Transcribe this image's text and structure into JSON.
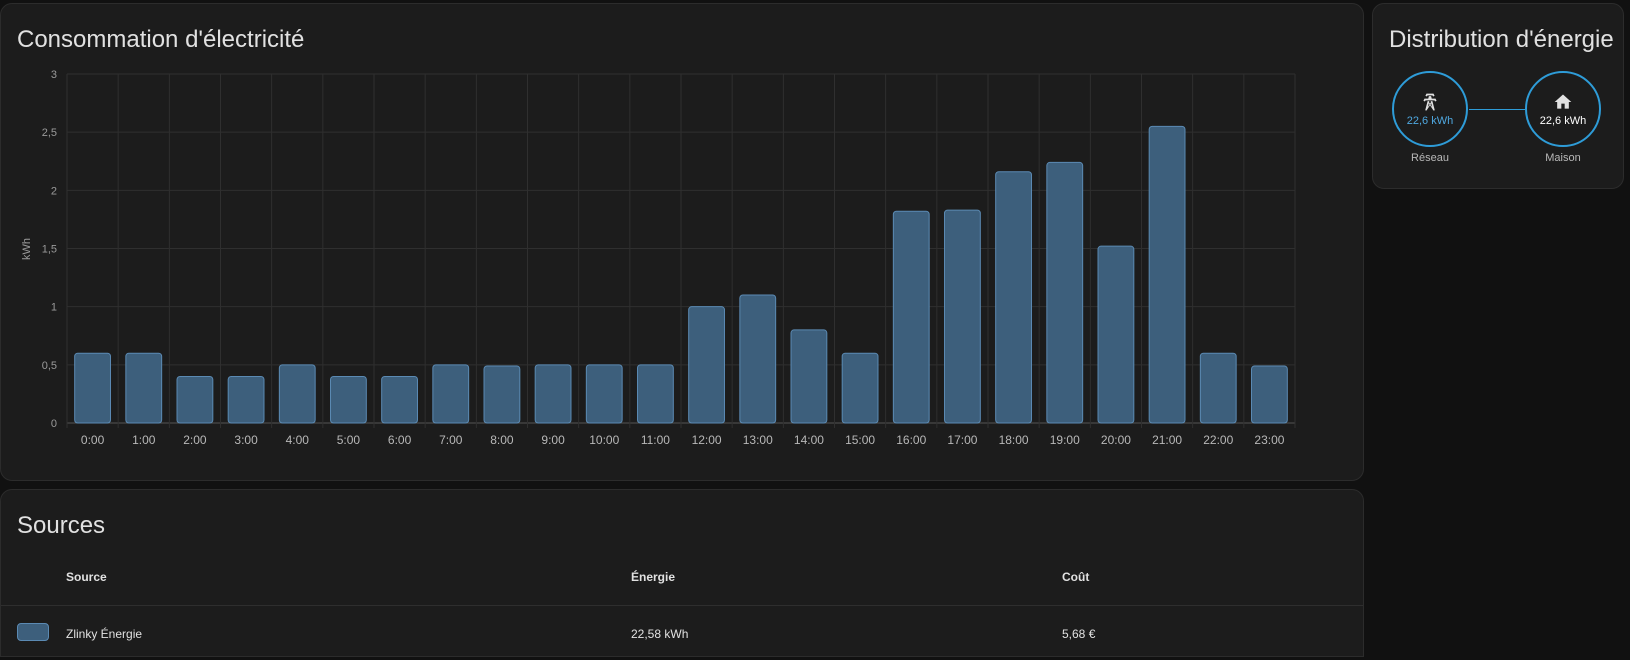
{
  "consumption": {
    "title": "Consommation d'électricité",
    "unit_label": "kWh"
  },
  "chart_data": {
    "type": "bar",
    "title": "Consommation d'électricité",
    "xlabel": "",
    "ylabel": "kWh",
    "ylim": [
      0,
      3
    ],
    "y_ticks": [
      "0",
      "0,5",
      "1",
      "1,5",
      "2",
      "2,5",
      "3"
    ],
    "categories": [
      "0:00",
      "1:00",
      "2:00",
      "3:00",
      "4:00",
      "5:00",
      "6:00",
      "7:00",
      "8:00",
      "9:00",
      "10:00",
      "11:00",
      "12:00",
      "13:00",
      "14:00",
      "15:00",
      "16:00",
      "17:00",
      "18:00",
      "19:00",
      "20:00",
      "21:00",
      "22:00",
      "23:00"
    ],
    "values": [
      0.6,
      0.6,
      0.4,
      0.4,
      0.5,
      0.4,
      0.4,
      0.5,
      0.49,
      0.5,
      0.5,
      0.5,
      1.0,
      1.1,
      0.8,
      0.6,
      1.82,
      1.83,
      2.16,
      2.24,
      1.52,
      2.55,
      0.6,
      0.49
    ],
    "grid": true,
    "colors": {
      "fill": "#3d5f7c",
      "stroke": "#5b8ab3"
    }
  },
  "sources": {
    "title": "Sources",
    "headers": {
      "source": "Source",
      "energy": "Énergie",
      "cost": "Coût"
    },
    "rows": [
      {
        "name": "Zlinky Énergie",
        "energy": "22,58 kWh",
        "cost": "5,68 €",
        "color": "#3d5f7c"
      }
    ]
  },
  "distribution": {
    "title": "Distribution d'énergie",
    "grid": {
      "value": "22,6 kWh",
      "label": "Réseau",
      "icon": "transmission-tower-icon"
    },
    "home": {
      "value": "22,6 kWh",
      "label": "Maison",
      "icon": "home-icon"
    },
    "colors": {
      "accent": "#2e9cd8",
      "grid_value": "#4fa8e0"
    }
  }
}
